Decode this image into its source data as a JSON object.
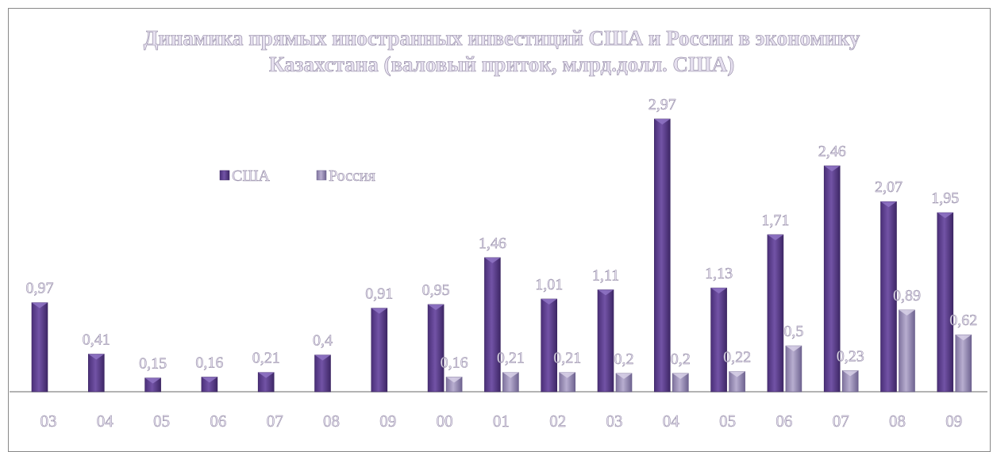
{
  "chart_data": {
    "type": "bar",
    "title_lines": [
      "Динамика прямых иностранных инвестиций США и России в экономику",
      "Казахстана (валовый приток, млрд.долл. США)"
    ],
    "categories": [
      "03",
      "04",
      "05",
      "06",
      "07",
      "08",
      "09",
      "00",
      "01",
      "02",
      "03",
      "04",
      "05",
      "06",
      "07",
      "08",
      "09"
    ],
    "series": [
      {
        "name": "США",
        "color": "#6a4a9a",
        "values": [
          0.97,
          0.41,
          0.15,
          0.16,
          0.21,
          0.4,
          0.91,
          0.95,
          1.46,
          1.01,
          1.11,
          2.97,
          1.13,
          1.71,
          2.46,
          2.07,
          1.95
        ],
        "labels": [
          "0,97",
          "0,41",
          "0,15",
          "0,16",
          "0,21",
          "0,4",
          "0,91",
          "0,95",
          "1,46",
          "1,01",
          "1,11",
          "2,97",
          "1,13",
          "1,71",
          "2,46",
          "2,07",
          "1,95"
        ]
      },
      {
        "name": "Россия",
        "color": "#a297bd",
        "values": [
          null,
          null,
          null,
          null,
          null,
          null,
          null,
          0.16,
          0.21,
          0.21,
          0.2,
          0.2,
          0.22,
          0.5,
          0.23,
          0.89,
          0.62
        ],
        "labels": [
          null,
          null,
          null,
          null,
          null,
          null,
          null,
          "0,16",
          "0,21",
          "0,21",
          "0,2",
          "0,2",
          "0,22",
          "0,5",
          "0,23",
          "0,89",
          "0,62"
        ]
      }
    ],
    "ylim": [
      0,
      3.1
    ],
    "grid": false,
    "legend_position": "top-left"
  }
}
